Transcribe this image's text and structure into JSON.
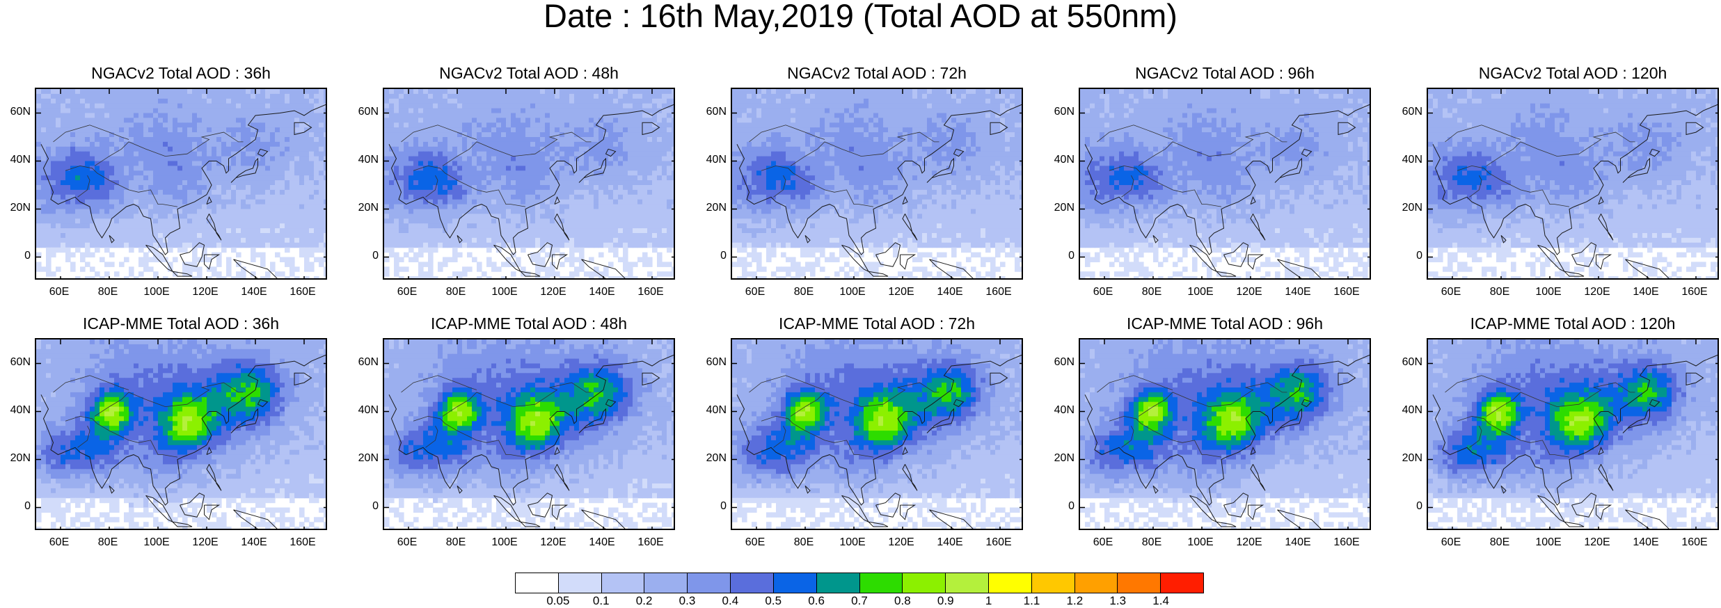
{
  "title": "Date : 16th May,2019 (Total AOD at 550nm)",
  "panels": [
    {
      "title": "NGACv2 Total AOD : 36h",
      "model": "ngac",
      "lead": 36
    },
    {
      "title": "NGACv2 Total AOD : 48h",
      "model": "ngac",
      "lead": 48
    },
    {
      "title": "NGACv2 Total AOD : 72h",
      "model": "ngac",
      "lead": 72
    },
    {
      "title": "NGACv2 Total AOD : 96h",
      "model": "ngac",
      "lead": 96
    },
    {
      "title": "NGACv2 Total AOD : 120h",
      "model": "ngac",
      "lead": 120
    },
    {
      "title": "ICAP-MME Total AOD : 36h",
      "model": "icap",
      "lead": 36
    },
    {
      "title": "ICAP-MME Total AOD : 48h",
      "model": "icap",
      "lead": 48
    },
    {
      "title": "ICAP-MME Total AOD : 72h",
      "model": "icap",
      "lead": 72
    },
    {
      "title": "ICAP-MME Total AOD : 96h",
      "model": "icap",
      "lead": 96
    },
    {
      "title": "ICAP-MME Total AOD : 120h",
      "model": "icap",
      "lead": 120
    }
  ],
  "lat_ticks": [
    "60N",
    "40N",
    "20N",
    "0"
  ],
  "lon_ticks": [
    "60E",
    "80E",
    "100E",
    "120E",
    "140E",
    "160E"
  ],
  "colorbar": {
    "labels": [
      "0.05",
      "0.1",
      "0.2",
      "0.3",
      "0.4",
      "0.5",
      "0.6",
      "0.7",
      "0.8",
      "0.9",
      "1",
      "1.1",
      "1.2",
      "1.3",
      "1.4"
    ],
    "colors": [
      "#ffffff",
      "#d2dcfa",
      "#b4c3f5",
      "#9bafef",
      "#7f96ea",
      "#5a6edc",
      "#0a64e6",
      "#00968c",
      "#2ddc00",
      "#8cf000",
      "#b4f03c",
      "#ffff00",
      "#ffc800",
      "#ffa000",
      "#ff7800",
      "#ff1e00"
    ]
  }
}
